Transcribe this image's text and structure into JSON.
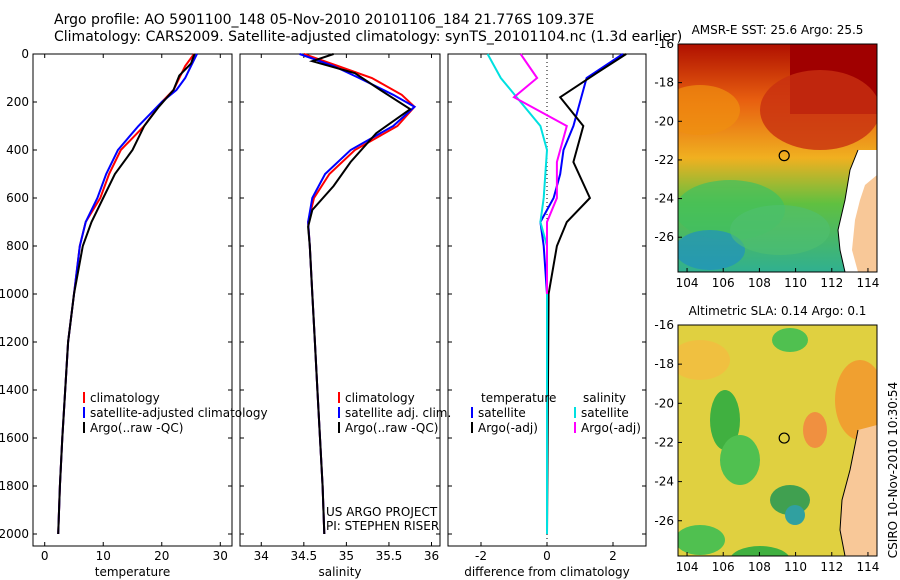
{
  "header": {
    "line1": "Argo profile: AO 5901100_148 05-Nov-2010 20101106_184 21.776S 109.37E",
    "line2": "Climatology: CARS2009. Satellite-adjusted climatology: synTS_20101104.nc (1.3d earlier)"
  },
  "credit": "CSIRO 10-Nov-2010 10:30:54",
  "colors": {
    "climatology": "#ff0000",
    "satellite": "#0000ff",
    "argo": "#000000",
    "sal_sat": "#00e0e0",
    "sal_argo": "#ff00ff"
  },
  "chart_data": [
    {
      "type": "line",
      "id": "temperature",
      "xlabel": "temperature",
      "xlim": [
        -2,
        32
      ],
      "ylim": [
        2050,
        0
      ],
      "xticks": [
        0,
        10,
        20,
        30
      ],
      "yticks": [
        0,
        200,
        400,
        600,
        800,
        1000,
        1200,
        1400,
        1600,
        1800,
        2000
      ],
      "legend": [
        "climatology",
        "satellite-adjusted climatology",
        "Argo(..raw -QC)"
      ],
      "series": [
        {
          "name": "climatology",
          "color": "#ff0000",
          "points": [
            [
              25.5,
              0
            ],
            [
              24,
              50
            ],
            [
              23,
              100
            ],
            [
              22,
              150
            ],
            [
              20,
              200
            ],
            [
              17,
              300
            ],
            [
              13,
              400
            ],
            [
              11,
              500
            ],
            [
              9.5,
              600
            ],
            [
              7,
              700
            ],
            [
              6,
              800
            ],
            [
              5,
              1000
            ],
            [
              4,
              1200
            ],
            [
              3.5,
              1400
            ],
            [
              3,
              1600
            ],
            [
              2.6,
              1800
            ],
            [
              2.3,
              2000
            ]
          ]
        },
        {
          "name": "satellite-adjusted climatology",
          "color": "#0000ff",
          "points": [
            [
              26,
              0
            ],
            [
              25,
              50
            ],
            [
              24,
              100
            ],
            [
              22.5,
              150
            ],
            [
              20,
              200
            ],
            [
              16,
              300
            ],
            [
              12.5,
              400
            ],
            [
              10.5,
              500
            ],
            [
              9,
              600
            ],
            [
              7,
              700
            ],
            [
              6,
              800
            ],
            [
              5,
              1000
            ],
            [
              4,
              1200
            ],
            [
              3.5,
              1400
            ],
            [
              3,
              1600
            ],
            [
              2.6,
              1800
            ],
            [
              2.3,
              2000
            ]
          ]
        },
        {
          "name": "Argo(..raw -QC)",
          "color": "#000000",
          "points": [
            [
              25.6,
              0
            ],
            [
              25,
              40
            ],
            [
              23,
              90
            ],
            [
              22,
              150
            ],
            [
              19.5,
              220
            ],
            [
              17,
              300
            ],
            [
              15,
              400
            ],
            [
              12,
              500
            ],
            [
              10,
              600
            ],
            [
              8,
              700
            ],
            [
              6.5,
              800
            ],
            [
              5,
              1000
            ],
            [
              4,
              1200
            ],
            [
              3.5,
              1400
            ],
            [
              3,
              1600
            ],
            [
              2.6,
              1800
            ],
            [
              2.3,
              2000
            ]
          ]
        }
      ]
    },
    {
      "type": "line",
      "id": "salinity",
      "xlabel": "salinity",
      "xlim": [
        33.75,
        36.1
      ],
      "ylim": [
        2050,
        0
      ],
      "xticks": [
        34,
        34.5,
        35,
        35.5,
        36
      ],
      "legend": [
        "climatology",
        "satellite adj. clim.",
        "Argo(..raw -QC)"
      ],
      "annotation": [
        "US ARGO PROJECT",
        "PI: STEPHEN RISER"
      ],
      "series": [
        {
          "name": "climatology",
          "color": "#ff0000",
          "points": [
            [
              34.5,
              0
            ],
            [
              34.9,
              50
            ],
            [
              35.3,
              100
            ],
            [
              35.65,
              170
            ],
            [
              35.8,
              220
            ],
            [
              35.6,
              300
            ],
            [
              35.1,
              400
            ],
            [
              34.8,
              500
            ],
            [
              34.62,
              600
            ],
            [
              34.55,
              700
            ],
            [
              34.57,
              800
            ],
            [
              34.6,
              1000
            ],
            [
              34.63,
              1200
            ],
            [
              34.66,
              1400
            ],
            [
              34.69,
              1600
            ],
            [
              34.72,
              1800
            ],
            [
              34.74,
              2000
            ]
          ]
        },
        {
          "name": "satellite adj. clim.",
          "color": "#0000ff",
          "points": [
            [
              34.45,
              0
            ],
            [
              34.85,
              50
            ],
            [
              35.15,
              100
            ],
            [
              35.55,
              170
            ],
            [
              35.8,
              220
            ],
            [
              35.55,
              300
            ],
            [
              35.05,
              400
            ],
            [
              34.75,
              500
            ],
            [
              34.6,
              600
            ],
            [
              34.55,
              700
            ],
            [
              34.57,
              800
            ],
            [
              34.6,
              1000
            ],
            [
              34.63,
              1200
            ],
            [
              34.66,
              1400
            ],
            [
              34.69,
              1600
            ],
            [
              34.72,
              1800
            ],
            [
              34.74,
              2000
            ]
          ]
        },
        {
          "name": "Argo(..raw -QC)",
          "color": "#000000",
          "points": [
            [
              34.85,
              0
            ],
            [
              34.6,
              30
            ],
            [
              35.1,
              80
            ],
            [
              35.4,
              150
            ],
            [
              35.75,
              230
            ],
            [
              35.35,
              330
            ],
            [
              35.05,
              450
            ],
            [
              34.85,
              550
            ],
            [
              34.6,
              650
            ],
            [
              34.55,
              720
            ],
            [
              34.57,
              800
            ],
            [
              34.6,
              1000
            ],
            [
              34.63,
              1200
            ],
            [
              34.66,
              1400
            ],
            [
              34.69,
              1600
            ],
            [
              34.72,
              1800
            ],
            [
              34.74,
              2000
            ]
          ]
        }
      ]
    },
    {
      "type": "line",
      "id": "difference",
      "xlabel": "difference from climatology",
      "xlim": [
        -3,
        3
      ],
      "ylim": [
        2050,
        0
      ],
      "xticks": [
        -2,
        0,
        2
      ],
      "legend_t": [
        "temperature",
        "satellite",
        "Argo(-adj)"
      ],
      "legend_s": [
        "salinity",
        "satellite",
        "Argo(-adj)"
      ],
      "series": [
        {
          "name": "temp satellite",
          "color": "#0000ff",
          "points": [
            [
              2.3,
              0
            ],
            [
              1.2,
              100
            ],
            [
              1,
              200
            ],
            [
              0.8,
              300
            ],
            [
              0.5,
              400
            ],
            [
              0.4,
              500
            ],
            [
              0.2,
              600
            ],
            [
              -0.2,
              700
            ],
            [
              -0.1,
              800
            ],
            [
              0,
              1000
            ],
            [
              0,
              2000
            ]
          ]
        },
        {
          "name": "temp Argo(-adj)",
          "color": "#000000",
          "points": [
            [
              2.4,
              0
            ],
            [
              1.5,
              80
            ],
            [
              0.4,
              180
            ],
            [
              1.1,
              300
            ],
            [
              0.8,
              450
            ],
            [
              1.3,
              600
            ],
            [
              0.6,
              700
            ],
            [
              0.3,
              800
            ],
            [
              0.05,
              1000
            ],
            [
              0,
              2000
            ]
          ]
        },
        {
          "name": "sal satellite",
          "color": "#00e0e0",
          "points": [
            [
              -1.8,
              0
            ],
            [
              -1.4,
              100
            ],
            [
              -0.8,
              200
            ],
            [
              -0.2,
              300
            ],
            [
              0,
              400
            ],
            [
              -0.1,
              600
            ],
            [
              -0.2,
              700
            ],
            [
              0,
              800
            ],
            [
              0,
              2000
            ]
          ]
        },
        {
          "name": "sal Argo(-adj)",
          "color": "#ff00ff",
          "points": [
            [
              -0.8,
              0
            ],
            [
              -0.3,
              100
            ],
            [
              -1,
              180
            ],
            [
              0.6,
              300
            ],
            [
              0.3,
              450
            ],
            [
              0.3,
              600
            ],
            [
              0,
              700
            ],
            [
              0,
              800
            ],
            [
              0,
              1000
            ]
          ]
        }
      ]
    },
    {
      "type": "heatmap",
      "id": "sst_map",
      "title": "AMSR-E SST: 25.6 Argo: 25.5",
      "xlim": [
        103.5,
        114.5
      ],
      "ylim": [
        -27.8,
        -16
      ],
      "xticks": [
        104,
        106,
        108,
        110,
        112,
        114
      ],
      "yticks": [
        -16,
        -18,
        -20,
        -22,
        -24,
        -26
      ],
      "marker": [
        109.37,
        -21.776
      ]
    },
    {
      "type": "heatmap",
      "id": "sla_map",
      "title": "Altimetric SLA: 0.14 Argo: 0.1",
      "xlim": [
        103.5,
        114.5
      ],
      "ylim": [
        -27.8,
        -16
      ],
      "xticks": [
        104,
        106,
        108,
        110,
        112,
        114
      ],
      "yticks": [
        -16,
        -18,
        -20,
        -22,
        -24,
        -26
      ],
      "marker": [
        109.37,
        -21.776
      ]
    }
  ]
}
